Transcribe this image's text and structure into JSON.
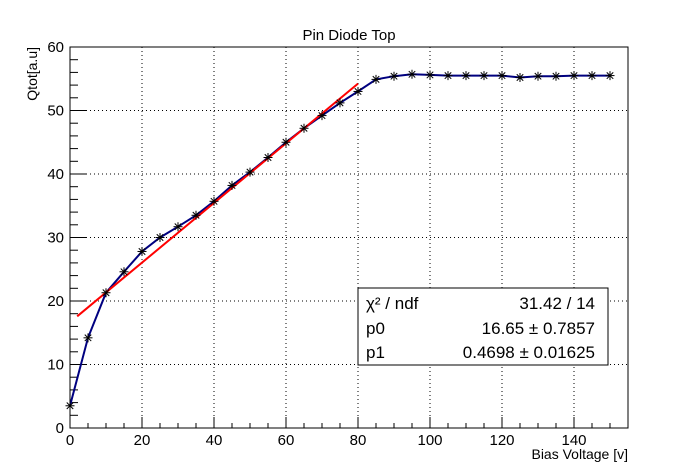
{
  "chart_data": {
    "type": "line",
    "title": "Pin Diode Top",
    "xlabel": "Bias Voltage [v]",
    "ylabel": "Qtot[a.u]",
    "xlim": [
      0,
      155
    ],
    "ylim": [
      0,
      60
    ],
    "xticks": [
      0,
      20,
      40,
      60,
      80,
      100,
      120,
      140
    ],
    "yticks": [
      0,
      10,
      20,
      30,
      40,
      50,
      60
    ],
    "grid": true,
    "series": [
      {
        "type": "line-with-markers",
        "marker": "asterisk",
        "color": "#000080",
        "x": [
          0,
          5,
          10,
          15,
          20,
          25,
          30,
          35,
          40,
          45,
          50,
          55,
          60,
          65,
          70,
          75,
          80,
          85,
          90,
          95,
          100,
          105,
          110,
          115,
          120,
          125,
          130,
          135,
          140,
          145,
          150
        ],
        "y": [
          3.5,
          14.2,
          21.3,
          24.6,
          27.8,
          30.0,
          31.7,
          33.5,
          35.7,
          38.2,
          40.3,
          42.6,
          45.0,
          47.2,
          49.2,
          51.2,
          53.0,
          54.9,
          55.4,
          55.7,
          55.6,
          55.5,
          55.5,
          55.5,
          55.5,
          55.2,
          55.4,
          55.4,
          55.5,
          55.5,
          55.5
        ]
      },
      {
        "type": "fit",
        "color": "#ff0000",
        "x": [
          2,
          80
        ],
        "y": [
          17.59,
          54.23
        ]
      }
    ],
    "stats": {
      "rows": [
        {
          "label": "χ² / ndf",
          "value": "31.42 / 14"
        },
        {
          "label": "p0",
          "value": "16.65 ± 0.7857"
        },
        {
          "label": "p1",
          "value": "0.4698 ± 0.01625"
        }
      ]
    }
  }
}
